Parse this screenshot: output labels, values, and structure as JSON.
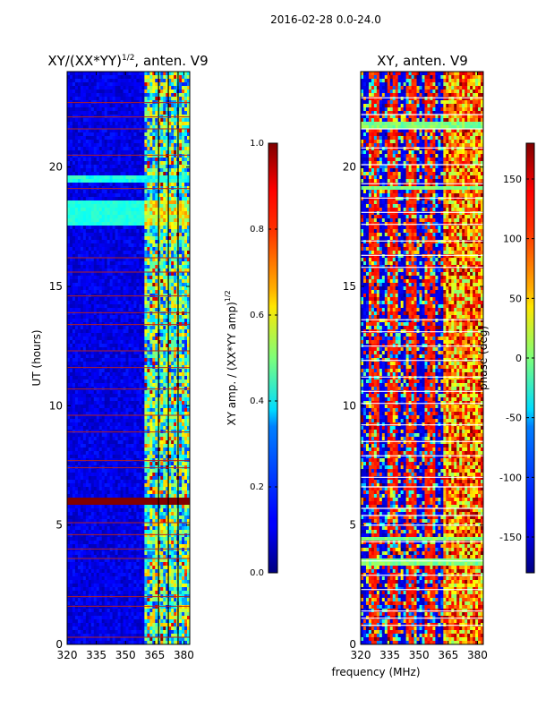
{
  "figure": {
    "suptitle": "2016-02-28 0.0-24.0",
    "xlabel": "frequency (MHz)"
  },
  "chart_data": [
    {
      "type": "heatmap",
      "title": "XY/(XX*YY)",
      "title_exponent": "1/2",
      "title_suffix": ", anten. V9",
      "xlabel": "",
      "ylabel": "UT (hours)",
      "xlim": [
        320,
        383
      ],
      "ylim": [
        0,
        24
      ],
      "xticks": [
        "320",
        "335",
        "350",
        "365",
        "380"
      ],
      "yticks": [
        "0",
        "5",
        "10",
        "15",
        "20"
      ],
      "colorbar": {
        "label": "XY amp. / (XX*YY amp)",
        "label_exponent": "1/2",
        "range": [
          0.0,
          1.0
        ],
        "ticks": [
          "0.0",
          "0.2",
          "0.4",
          "0.6",
          "0.8",
          "1.0"
        ],
        "colormap": "jet"
      },
      "features": {
        "high_band_start_mhz": 360,
        "red_flag_lines_ut": [
          0.3,
          1.6,
          2.0,
          3.6,
          4.0,
          4.6,
          5.1,
          7.4,
          7.7,
          8.9,
          9.6,
          10.7,
          11.6,
          12.3,
          13.4,
          13.9,
          14.6,
          15.6,
          16.2,
          19.1,
          20.5,
          21.6,
          22.1,
          22.7
        ],
        "saturated_band_ut": [
          5.8,
          6.2
        ],
        "bright_band_ut": [
          17.6,
          18.6
        ],
        "bright_stripe_ut": [
          19.4,
          19.7
        ]
      }
    },
    {
      "type": "heatmap",
      "title": "XY, anten. V9",
      "xlabel": "",
      "ylabel": "",
      "xlim": [
        320,
        383
      ],
      "ylim": [
        0,
        24
      ],
      "xticks": [
        "320",
        "335",
        "350",
        "365",
        "380"
      ],
      "yticks": [
        "0",
        "5",
        "10",
        "15",
        "20"
      ],
      "colorbar": {
        "label": "phase (deg)",
        "range": [
          -180,
          180
        ],
        "ticks": [
          "-150",
          "-100",
          "-50",
          "0",
          "50",
          "100",
          "150"
        ],
        "colormap": "jet"
      },
      "features": {
        "white_flag_lines_ut": [
          0.8,
          1.1,
          1.4,
          2.3,
          2.9,
          3.5,
          4.3,
          5.0,
          5.4,
          5.7,
          6.6,
          7.0,
          7.9,
          8.5,
          9.2,
          10.1,
          10.6,
          11.2,
          11.9,
          12.5,
          13.1,
          13.6,
          15.8,
          16.3,
          16.9,
          17.6,
          18.1,
          18.7,
          19.3,
          20.1,
          20.8,
          21.6,
          22.2,
          22.9
        ]
      }
    }
  ],
  "colors": {
    "jet_low": "#00007f",
    "jet_high": "#7f0000",
    "flag_red": "#b22222",
    "flag_white": "#ffffff"
  }
}
